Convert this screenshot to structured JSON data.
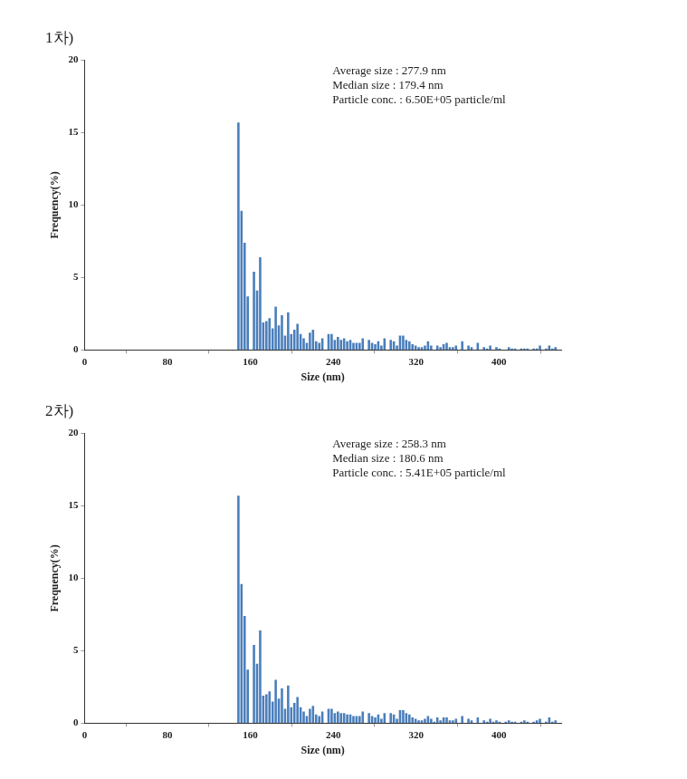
{
  "chart_data": [
    {
      "type": "histogram",
      "title": "1차)",
      "annotations": [
        "Average size : 277.9 nm",
        "Median size : 179.4 nm",
        "Particle conc. : 6.50E+05 particle/ml"
      ],
      "x_label": "Size (nm)",
      "y_label": "Frequency(%)",
      "bins": [
        147,
        150,
        153,
        156,
        159,
        162,
        165,
        168,
        171,
        174,
        177,
        180,
        183,
        186,
        189,
        192,
        195,
        198,
        201,
        204,
        207,
        210,
        213,
        216,
        219,
        222,
        225,
        228,
        231,
        234,
        237,
        240,
        243,
        246,
        249,
        252,
        255,
        258,
        261,
        264,
        267,
        270,
        273,
        276,
        279,
        282,
        285,
        288,
        291,
        294,
        297,
        300,
        303,
        306,
        309,
        312,
        315,
        318,
        321,
        324,
        327,
        330,
        333,
        336,
        339,
        342,
        345,
        348,
        351,
        354,
        357,
        360,
        363,
        366,
        369,
        372,
        375,
        378,
        381,
        384,
        387,
        390,
        393,
        396,
        399,
        402,
        405,
        408,
        411,
        414,
        417,
        420,
        423,
        426,
        429,
        432,
        435,
        438,
        441,
        444,
        447,
        450,
        453,
        456
      ],
      "values": [
        15.7,
        9.6,
        7.4,
        3.7,
        0,
        5.4,
        4.1,
        6.4,
        1.9,
        2.0,
        2.2,
        1.5,
        3.0,
        1.7,
        2.4,
        1.0,
        2.6,
        1.1,
        1.4,
        1.8,
        1.1,
        0.8,
        0.5,
        1.2,
        1.4,
        0.6,
        0.5,
        0.8,
        0,
        1.1,
        1.1,
        0.7,
        0.9,
        0.7,
        0.8,
        0.6,
        0.7,
        0.5,
        0.5,
        0.5,
        0.8,
        0,
        0.7,
        0.5,
        0.4,
        0.6,
        0.3,
        0.8,
        0,
        0.7,
        0.6,
        0.3,
        1.0,
        1.0,
        0.7,
        0.6,
        0.4,
        0.3,
        0.2,
        0.2,
        0.3,
        0.6,
        0.3,
        0,
        0.3,
        0.2,
        0.4,
        0.5,
        0.2,
        0.2,
        0.3,
        0,
        0.6,
        0,
        0.3,
        0.2,
        0,
        0.5,
        0,
        0.2,
        0.1,
        0.3,
        0,
        0.2,
        0.1,
        0,
        0,
        0.2,
        0.1,
        0.1,
        0,
        0.1,
        0.1,
        0.1,
        0,
        0.1,
        0.1,
        0.3,
        0,
        0.1,
        0.3,
        0.1,
        0.2
      ],
      "color": "#4a7ebb",
      "xlim": [
        0,
        460
      ],
      "xticks": [
        0,
        80,
        160,
        240,
        320,
        400
      ],
      "ylim": [
        0,
        20
      ],
      "yticks": [
        0,
        5,
        10,
        15,
        20
      ],
      "grid": false
    },
    {
      "type": "histogram",
      "title": "2차)",
      "annotations": [
        "Average size : 258.3 nm",
        "Median size : 180.6 nm",
        "Particle conc. : 5.41E+05 particle/ml"
      ],
      "x_label": "Size (nm)",
      "y_label": "Frequency(%)",
      "bins": [
        147,
        150,
        153,
        156,
        159,
        162,
        165,
        168,
        171,
        174,
        177,
        180,
        183,
        186,
        189,
        192,
        195,
        198,
        201,
        204,
        207,
        210,
        213,
        216,
        219,
        222,
        225,
        228,
        231,
        234,
        237,
        240,
        243,
        246,
        249,
        252,
        255,
        258,
        261,
        264,
        267,
        270,
        273,
        276,
        279,
        282,
        285,
        288,
        291,
        294,
        297,
        300,
        303,
        306,
        309,
        312,
        315,
        318,
        321,
        324,
        327,
        330,
        333,
        336,
        339,
        342,
        345,
        348,
        351,
        354,
        357,
        360,
        363,
        366,
        369,
        372,
        375,
        378,
        381,
        384,
        387,
        390,
        393,
        396,
        399,
        402,
        405,
        408,
        411,
        414,
        417,
        420,
        423,
        426,
        429,
        432,
        435,
        438,
        441,
        444,
        447,
        450,
        453,
        456
      ],
      "values": [
        15.7,
        9.6,
        7.4,
        3.7,
        0,
        5.4,
        4.1,
        6.4,
        1.9,
        2.0,
        2.2,
        1.5,
        3.0,
        1.7,
        2.4,
        1.0,
        2.6,
        1.1,
        1.4,
        1.8,
        1.1,
        0.8,
        0.5,
        1.0,
        1.2,
        0.6,
        0.5,
        0.8,
        0,
        1.0,
        1.0,
        0.7,
        0.8,
        0.7,
        0.7,
        0.6,
        0.6,
        0.5,
        0.5,
        0.5,
        0.8,
        0,
        0.7,
        0.5,
        0.4,
        0.6,
        0.3,
        0.7,
        0,
        0.7,
        0.6,
        0.3,
        0.9,
        0.9,
        0.7,
        0.6,
        0.4,
        0.3,
        0.2,
        0.2,
        0.3,
        0.5,
        0.3,
        0.1,
        0.4,
        0.2,
        0.4,
        0.4,
        0.2,
        0.2,
        0.3,
        0,
        0.5,
        0,
        0.3,
        0.2,
        0,
        0.4,
        0,
        0.2,
        0.1,
        0.3,
        0.1,
        0.2,
        0.1,
        0,
        0.1,
        0.2,
        0.1,
        0.1,
        0,
        0.1,
        0.2,
        0.1,
        0,
        0.1,
        0.2,
        0.3,
        0,
        0.1,
        0.4,
        0.1,
        0.2
      ],
      "color": "#4a7ebb",
      "xlim": [
        0,
        460
      ],
      "xticks": [
        0,
        80,
        160,
        240,
        320,
        400
      ],
      "ylim": [
        0,
        20
      ],
      "yticks": [
        0,
        5,
        10,
        15,
        20
      ],
      "grid": false
    }
  ]
}
